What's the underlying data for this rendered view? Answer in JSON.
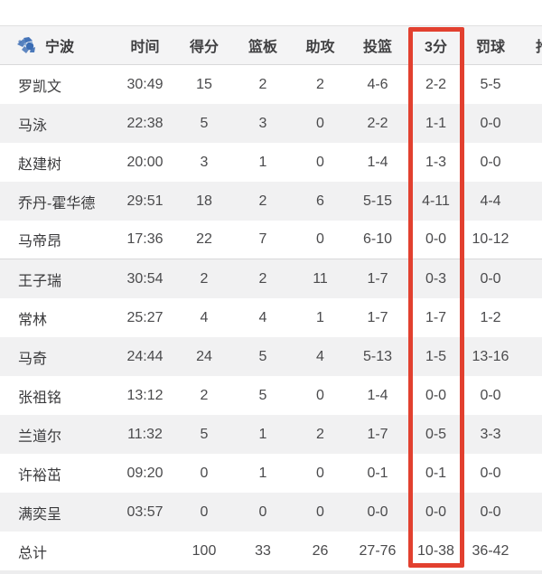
{
  "colors": {
    "header_bg": "#f4f4f5",
    "row_alt_bg": "#f1f1f2",
    "row_bg": "#ffffff",
    "border": "#d9d9da",
    "text_header": "#404042",
    "text_body": "#4a4a4c",
    "highlight_red": "#e2402f",
    "logo_blue": "#3a6cb4"
  },
  "table": {
    "team": {
      "name": "宁波",
      "logo_icon": "team-logo"
    },
    "starters_count": 5,
    "highlight_column": "tp",
    "columns": [
      {
        "key": "time",
        "label": "时间"
      },
      {
        "key": "pts",
        "label": "得分"
      },
      {
        "key": "reb",
        "label": "篮板"
      },
      {
        "key": "ast",
        "label": "助攻"
      },
      {
        "key": "fg",
        "label": "投篮"
      },
      {
        "key": "tp",
        "label": "3分",
        "highlighted": true
      },
      {
        "key": "ft",
        "label": "罚球"
      },
      {
        "key": "partial",
        "label": "抢",
        "clipped": true
      }
    ],
    "rows": [
      {
        "name": "罗凯文",
        "time": "30:49",
        "pts": "15",
        "reb": "2",
        "ast": "2",
        "fg": "4-6",
        "tp": "2-2",
        "ft": "5-5"
      },
      {
        "name": "马泳",
        "time": "22:38",
        "pts": "5",
        "reb": "3",
        "ast": "0",
        "fg": "2-2",
        "tp": "1-1",
        "ft": "0-0"
      },
      {
        "name": "赵建树",
        "time": "20:00",
        "pts": "3",
        "reb": "1",
        "ast": "0",
        "fg": "1-4",
        "tp": "1-3",
        "ft": "0-0"
      },
      {
        "name": "乔丹-霍华德",
        "time": "29:51",
        "pts": "18",
        "reb": "2",
        "ast": "6",
        "fg": "5-15",
        "tp": "4-11",
        "ft": "4-4"
      },
      {
        "name": "马帝昂",
        "time": "17:36",
        "pts": "22",
        "reb": "7",
        "ast": "0",
        "fg": "6-10",
        "tp": "0-0",
        "ft": "10-12"
      },
      {
        "name": "王子瑞",
        "time": "30:54",
        "pts": "2",
        "reb": "2",
        "ast": "11",
        "fg": "1-7",
        "tp": "0-3",
        "ft": "0-0"
      },
      {
        "name": "常林",
        "time": "25:27",
        "pts": "4",
        "reb": "4",
        "ast": "1",
        "fg": "1-7",
        "tp": "1-7",
        "ft": "1-2"
      },
      {
        "name": "马奇",
        "time": "24:44",
        "pts": "24",
        "reb": "5",
        "ast": "4",
        "fg": "5-13",
        "tp": "1-5",
        "ft": "13-16"
      },
      {
        "name": "张祖铭",
        "time": "13:12",
        "pts": "2",
        "reb": "5",
        "ast": "0",
        "fg": "1-4",
        "tp": "0-0",
        "ft": "0-0"
      },
      {
        "name": "兰道尔",
        "time": "11:32",
        "pts": "5",
        "reb": "1",
        "ast": "2",
        "fg": "1-7",
        "tp": "0-5",
        "ft": "3-3"
      },
      {
        "name": "许裕茁",
        "time": "09:20",
        "pts": "0",
        "reb": "1",
        "ast": "0",
        "fg": "0-1",
        "tp": "0-1",
        "ft": "0-0"
      },
      {
        "name": "满奕呈",
        "time": "03:57",
        "pts": "0",
        "reb": "0",
        "ast": "0",
        "fg": "0-0",
        "tp": "0-0",
        "ft": "0-0"
      }
    ],
    "totals": {
      "name": "总计",
      "time": "",
      "pts": "100",
      "reb": "33",
      "ast": "26",
      "fg": "27-76",
      "tp": "10-38",
      "ft": "36-42"
    }
  }
}
